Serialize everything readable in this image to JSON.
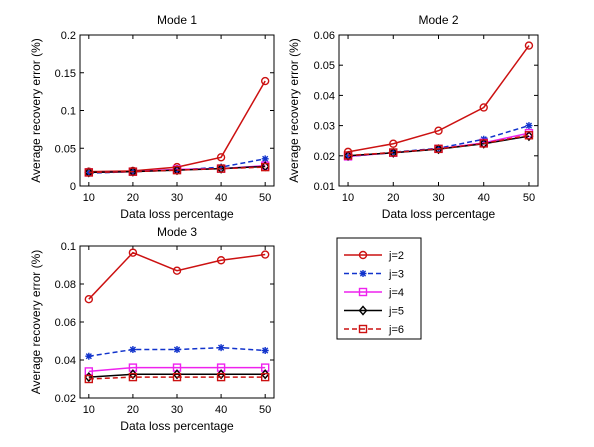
{
  "figure": {
    "legend": {
      "entries": [
        {
          "label": "j=2",
          "color": "#cc1111",
          "marker": "circle",
          "dash": "solid"
        },
        {
          "label": "j=3",
          "color": "#1133cc",
          "marker": "star",
          "dash": "dash"
        },
        {
          "label": "j=4",
          "color": "#ee22ee",
          "marker": "square",
          "dash": "solid"
        },
        {
          "label": "j=5",
          "color": "#000000",
          "marker": "diamond",
          "dash": "solid"
        },
        {
          "label": "j=6",
          "color": "#cc1111",
          "marker": "square",
          "dash": "dash"
        }
      ]
    }
  },
  "chart_data": [
    {
      "type": "line",
      "title": "Mode 1",
      "xlabel": "Data loss percentage",
      "ylabel": "Average recovery error (%)",
      "x": [
        10,
        20,
        30,
        40,
        50
      ],
      "xticks": [
        "10",
        "20",
        "30",
        "40",
        "50"
      ],
      "xlim": [
        8,
        52
      ],
      "ylim": [
        0,
        0.2
      ],
      "yticks": [
        "0",
        "0.05",
        "0.1",
        "0.15",
        "0.2"
      ],
      "ytick_values": [
        0,
        0.05,
        0.1,
        0.15,
        0.2
      ],
      "series": [
        {
          "name": "j=2",
          "values": [
            0.019,
            0.02,
            0.025,
            0.038,
            0.139
          ]
        },
        {
          "name": "j=3",
          "values": [
            0.017,
            0.019,
            0.021,
            0.025,
            0.036
          ]
        },
        {
          "name": "j=4",
          "values": [
            0.018,
            0.019,
            0.022,
            0.023,
            0.027
          ]
        },
        {
          "name": "j=5",
          "values": [
            0.018,
            0.019,
            0.021,
            0.023,
            0.026
          ]
        },
        {
          "name": "j=6",
          "values": [
            0.018,
            0.019,
            0.021,
            0.023,
            0.025
          ]
        }
      ]
    },
    {
      "type": "line",
      "title": "Mode 2",
      "xlabel": "Data loss percentage",
      "ylabel": "Average recovery error (%)",
      "x": [
        10,
        20,
        30,
        40,
        50
      ],
      "xticks": [
        "10",
        "20",
        "30",
        "40",
        "50"
      ],
      "xlim": [
        8,
        52
      ],
      "ylim": [
        0.01,
        0.06
      ],
      "yticks": [
        "0.01",
        "0.02",
        "0.03",
        "0.04",
        "0.05",
        "0.06"
      ],
      "ytick_values": [
        0.01,
        0.02,
        0.03,
        0.04,
        0.05,
        0.06
      ],
      "series": [
        {
          "name": "j=2",
          "values": [
            0.0213,
            0.024,
            0.0283,
            0.036,
            0.0565
          ]
        },
        {
          "name": "j=3",
          "values": [
            0.0197,
            0.0212,
            0.0225,
            0.0255,
            0.03
          ]
        },
        {
          "name": "j=4",
          "values": [
            0.0198,
            0.021,
            0.0223,
            0.0243,
            0.0275
          ]
        },
        {
          "name": "j=5",
          "values": [
            0.02,
            0.021,
            0.0222,
            0.024,
            0.0265
          ]
        },
        {
          "name": "j=6",
          "values": [
            0.0201,
            0.0211,
            0.0223,
            0.0241,
            0.0268
          ]
        }
      ]
    },
    {
      "type": "line",
      "title": "Mode 3",
      "xlabel": "Data loss percentage",
      "ylabel": "Average recovery error (%)",
      "x": [
        10,
        20,
        30,
        40,
        50
      ],
      "xticks": [
        "10",
        "20",
        "30",
        "40",
        "50"
      ],
      "xlim": [
        8,
        52
      ],
      "ylim": [
        0.02,
        0.1
      ],
      "yticks": [
        "0.02",
        "0.04",
        "0.06",
        "0.08",
        "0.1"
      ],
      "ytick_values": [
        0.02,
        0.04,
        0.06,
        0.08,
        0.1
      ],
      "series": [
        {
          "name": "j=2",
          "values": [
            0.072,
            0.0965,
            0.087,
            0.0925,
            0.0955
          ]
        },
        {
          "name": "j=3",
          "values": [
            0.042,
            0.0455,
            0.0455,
            0.0465,
            0.045
          ]
        },
        {
          "name": "j=4",
          "values": [
            0.034,
            0.036,
            0.036,
            0.036,
            0.036
          ]
        },
        {
          "name": "j=5",
          "values": [
            0.031,
            0.0325,
            0.0325,
            0.0325,
            0.0325
          ]
        },
        {
          "name": "j=6",
          "values": [
            0.03,
            0.031,
            0.031,
            0.031,
            0.031
          ]
        }
      ]
    }
  ]
}
